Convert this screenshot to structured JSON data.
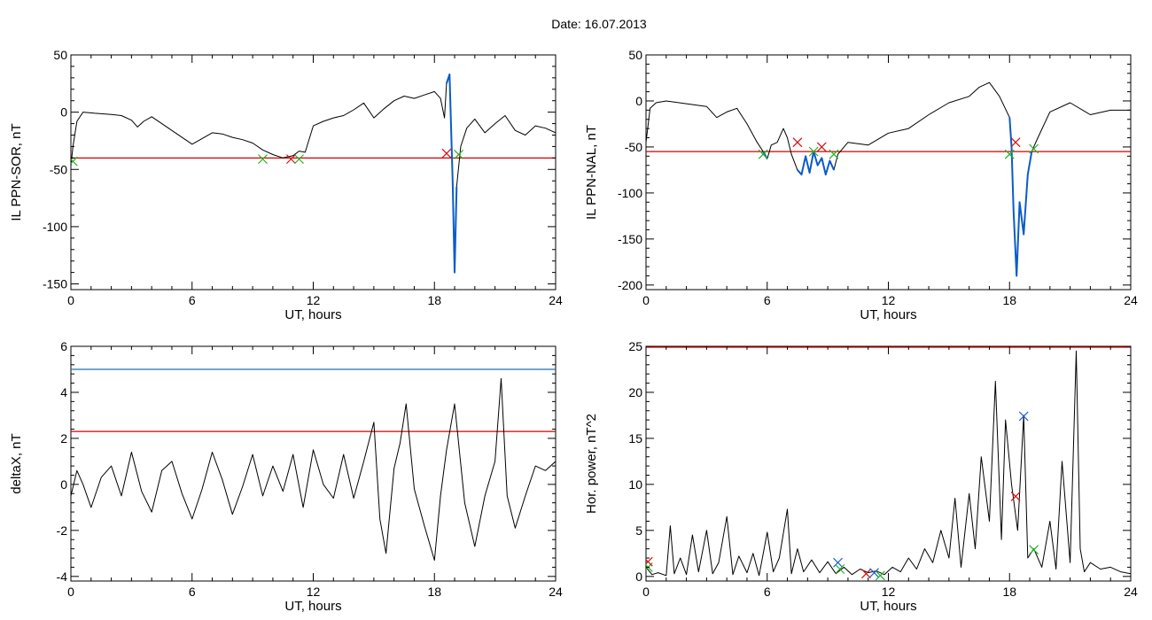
{
  "figure": {
    "title": "Date:  16.07.2013"
  },
  "colors": {
    "trace": "#000000",
    "threshold": "#d40000",
    "upper_line": "#1f6fa8",
    "highlight": "#0a5cc8",
    "marker_green": "#22b022",
    "marker_red": "#cc1111",
    "marker_blue": "#1f5fd6"
  },
  "chart_data": [
    {
      "type": "line",
      "ylabel": "IL PPN-SOR, nT",
      "xlabel": "UT, hours",
      "xlim": [
        0,
        24
      ],
      "ylim": [
        -155,
        50
      ],
      "xticks": [
        0,
        6,
        12,
        18,
        24
      ],
      "yticks": [
        -150,
        -100,
        -50,
        0,
        50
      ],
      "threshold": -40,
      "series": [
        {
          "x": [
            0,
            0.1,
            0.3,
            0.6,
            1.2,
            2,
            2.5,
            3,
            3.3,
            3.6,
            4,
            4.5,
            5,
            5.5,
            6,
            6.5,
            7,
            7.5,
            8,
            8.5,
            9,
            9.5,
            10,
            10.5,
            11,
            11.3,
            11.6,
            12,
            12.5,
            13,
            13.5,
            14,
            14.5,
            15,
            15.5,
            16,
            16.5,
            17,
            17.5,
            18,
            18.3,
            18.5,
            18.6,
            18.75,
            18.9,
            19.0,
            19.1,
            19.3,
            19.6,
            20,
            20.5,
            21,
            21.5,
            22,
            22.5,
            23,
            23.5,
            24
          ],
          "y": [
            -47,
            -30,
            -8,
            0,
            -1,
            -2,
            -3,
            -7,
            -13,
            -8,
            -4,
            -10,
            -16,
            -22,
            -28,
            -23,
            -18,
            -19,
            -22,
            -24,
            -27,
            -33,
            -37,
            -40,
            -38,
            -34,
            -35,
            -12,
            -8,
            -5,
            -3,
            2,
            8,
            -5,
            3,
            10,
            14,
            12,
            15,
            18,
            12,
            -5,
            25,
            33,
            -60,
            -140,
            -65,
            -30,
            -14,
            -6,
            -18,
            -10,
            -3,
            -16,
            -20,
            -12,
            -14,
            -18
          ]
        }
      ],
      "markers": [
        {
          "x": 0.1,
          "y": -43,
          "color": "green"
        },
        {
          "x": 9.5,
          "y": -41,
          "color": "green"
        },
        {
          "x": 10.9,
          "y": -41,
          "color": "red"
        },
        {
          "x": 11.3,
          "y": -41,
          "color": "green"
        },
        {
          "x": 18.6,
          "y": -36,
          "color": "red"
        },
        {
          "x": 19.2,
          "y": -37,
          "color": "green"
        }
      ],
      "highlight": [
        {
          "from": 18.6,
          "to": 19.2
        }
      ]
    },
    {
      "type": "line",
      "ylabel": "IL PPN-NAL, nT",
      "xlabel": "UT, hours",
      "xlim": [
        0,
        24
      ],
      "ylim": [
        -205,
        50
      ],
      "xticks": [
        0,
        6,
        12,
        18,
        24
      ],
      "yticks": [
        -200,
        -150,
        -100,
        -50,
        0,
        50
      ],
      "threshold": -55,
      "series": [
        {
          "x": [
            0,
            0.2,
            0.5,
            1,
            2,
            3,
            3.5,
            4,
            4.5,
            5,
            5.5,
            5.8,
            6,
            6.2,
            6.5,
            6.8,
            7,
            7.2,
            7.5,
            7.7,
            7.9,
            8.1,
            8.3,
            8.5,
            8.7,
            8.9,
            9.1,
            9.3,
            9.5,
            10,
            11,
            12,
            13,
            14,
            15,
            16,
            16.5,
            17,
            17.5,
            18,
            18.1,
            18.2,
            18.35,
            18.5,
            18.7,
            18.9,
            19.1,
            19.4,
            20,
            21,
            22,
            23,
            24
          ],
          "y": [
            -45,
            -8,
            -2,
            0,
            -3,
            -6,
            -18,
            -12,
            -8,
            -25,
            -45,
            -55,
            -63,
            -48,
            -45,
            -30,
            -40,
            -58,
            -75,
            -80,
            -60,
            -78,
            -55,
            -70,
            -62,
            -80,
            -65,
            -75,
            -58,
            -45,
            -48,
            -35,
            -30,
            -15,
            -2,
            5,
            15,
            20,
            5,
            -18,
            -50,
            -120,
            -190,
            -110,
            -145,
            -80,
            -55,
            -40,
            -12,
            -2,
            -15,
            -10,
            -10
          ]
        }
      ],
      "markers": [
        {
          "x": 5.8,
          "y": -58,
          "color": "green"
        },
        {
          "x": 7.5,
          "y": -45,
          "color": "red"
        },
        {
          "x": 8.3,
          "y": -55,
          "color": "green"
        },
        {
          "x": 8.7,
          "y": -50,
          "color": "red"
        },
        {
          "x": 9.3,
          "y": -58,
          "color": "green"
        },
        {
          "x": 18.0,
          "y": -58,
          "color": "green"
        },
        {
          "x": 18.3,
          "y": -45,
          "color": "red"
        },
        {
          "x": 19.2,
          "y": -52,
          "color": "green"
        }
      ],
      "highlight": [
        {
          "from": 5.8,
          "to": 6.0
        },
        {
          "from": 7.5,
          "to": 9.3
        },
        {
          "from": 18.0,
          "to": 19.2
        }
      ]
    },
    {
      "type": "line",
      "ylabel": "deltaX, nT",
      "xlabel": "UT, hours",
      "xlim": [
        0,
        24
      ],
      "ylim": [
        -4.2,
        6
      ],
      "xticks": [
        0,
        6,
        12,
        18,
        24
      ],
      "yticks": [
        -4,
        -2,
        0,
        2,
        4,
        6
      ],
      "threshold": 2.3,
      "upper_line": 5.0,
      "series": [
        {
          "x": [
            0,
            0.3,
            0.6,
            1,
            1.5,
            2,
            2.5,
            3,
            3.5,
            4,
            4.5,
            5,
            5.5,
            6,
            6.5,
            7,
            7.5,
            8,
            8.5,
            9,
            9.5,
            10,
            10.5,
            11,
            11.5,
            12,
            12.5,
            13,
            13.5,
            14,
            14.5,
            15,
            15.3,
            15.6,
            16,
            16.3,
            16.6,
            17,
            17.5,
            18,
            18.3,
            18.6,
            19,
            19.5,
            20,
            20.5,
            21,
            21.3,
            21.6,
            22,
            22.5,
            23,
            23.5,
            24
          ],
          "y": [
            -0.5,
            0.6,
            0.0,
            -1.0,
            0.3,
            0.8,
            -0.5,
            1.4,
            -0.3,
            -1.2,
            0.6,
            1.0,
            -0.4,
            -1.5,
            -0.2,
            1.4,
            0.2,
            -1.3,
            -0.1,
            1.3,
            -0.5,
            0.8,
            -0.3,
            1.3,
            -1.0,
            1.5,
            0.0,
            -0.6,
            1.3,
            -0.6,
            1.0,
            2.7,
            -1.5,
            -3.0,
            0.7,
            1.8,
            3.5,
            -0.2,
            -1.8,
            -3.3,
            -0.5,
            1.5,
            3.5,
            -0.8,
            -2.7,
            -0.5,
            1.0,
            4.6,
            -0.5,
            -1.9,
            -0.5,
            0.8,
            0.6,
            1.0
          ]
        }
      ]
    },
    {
      "type": "line",
      "ylabel": "Hor. power, nT^2",
      "xlabel": "UT, hours",
      "xlim": [
        0,
        24
      ],
      "ylim": [
        -0.5,
        25
      ],
      "xticks": [
        0,
        6,
        12,
        18,
        24
      ],
      "yticks": [
        0,
        5,
        10,
        15,
        20,
        25
      ],
      "threshold": 25,
      "series": [
        {
          "x": [
            0,
            0.3,
            0.6,
            1,
            1.2,
            1.4,
            1.7,
            2,
            2.3,
            2.6,
            3,
            3.3,
            3.6,
            4,
            4.3,
            4.6,
            5,
            5.3,
            5.6,
            6,
            6.3,
            6.6,
            7,
            7.2,
            7.5,
            7.8,
            8.2,
            8.6,
            9,
            9.4,
            9.8,
            10.2,
            10.6,
            11,
            11.4,
            11.8,
            12.2,
            12.6,
            13,
            13.4,
            13.8,
            14.2,
            14.6,
            15,
            15.3,
            15.6,
            16,
            16.3,
            16.6,
            17,
            17.3,
            17.6,
            17.8,
            18.1,
            18.4,
            18.7,
            18.9,
            19.2,
            19.6,
            20,
            20.3,
            20.6,
            21,
            21.3,
            21.5,
            21.7,
            22,
            22.5,
            23,
            23.5,
            24
          ],
          "y": [
            1.0,
            0.2,
            0.4,
            0.1,
            5.5,
            0.3,
            2.0,
            0.2,
            4.5,
            0.5,
            5.0,
            0.3,
            1.5,
            6.5,
            0.2,
            2.2,
            0.4,
            2.5,
            0.1,
            4.8,
            0.5,
            2.0,
            7.3,
            0.3,
            3.0,
            0.5,
            1.8,
            0.4,
            1.6,
            0.3,
            1.0,
            0.2,
            0.8,
            0.4,
            0.6,
            0.2,
            1.0,
            0.5,
            2.0,
            0.8,
            3.0,
            1.5,
            5.0,
            2.0,
            8.5,
            1.0,
            9.0,
            3.0,
            13.0,
            6.0,
            21.2,
            4.0,
            17.0,
            10.0,
            5.0,
            17.5,
            2.0,
            3.0,
            1.0,
            6.0,
            0.8,
            12.5,
            1.5,
            24.5,
            3.0,
            0.5,
            1.5,
            0.8,
            1.0,
            0.5,
            0.3
          ]
        }
      ],
      "markers": [
        {
          "x": 0.1,
          "y": 1.0,
          "color": "green"
        },
        {
          "x": 0.1,
          "y": 1.6,
          "color": "red"
        },
        {
          "x": 9.5,
          "y": 1.5,
          "color": "blue"
        },
        {
          "x": 9.6,
          "y": 0.8,
          "color": "green"
        },
        {
          "x": 10.9,
          "y": 0.3,
          "color": "red"
        },
        {
          "x": 11.3,
          "y": 0.4,
          "color": "blue"
        },
        {
          "x": 11.6,
          "y": 0.1,
          "color": "green"
        },
        {
          "x": 18.3,
          "y": 8.7,
          "color": "red"
        },
        {
          "x": 18.7,
          "y": 17.4,
          "color": "blue"
        },
        {
          "x": 19.2,
          "y": 2.9,
          "color": "green"
        }
      ]
    }
  ]
}
